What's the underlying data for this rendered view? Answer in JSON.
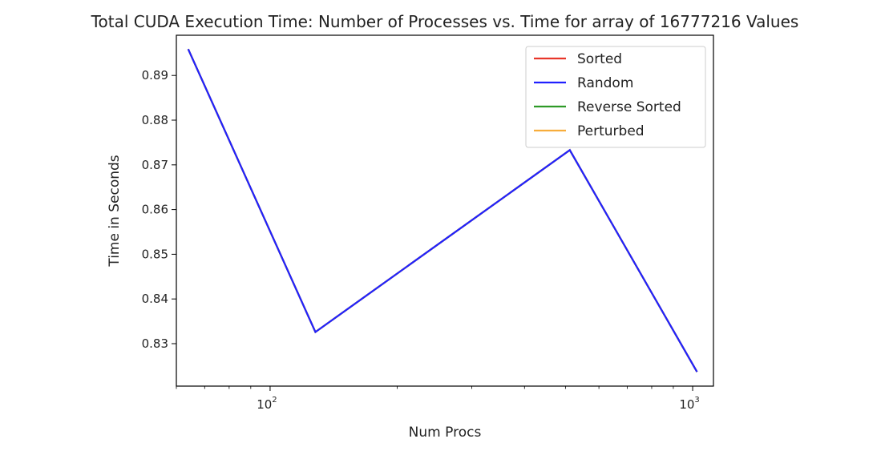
{
  "chart_data": {
    "type": "line",
    "title": "Total CUDA Execution Time: Number of Processes vs. Time for array of 16777216 Values",
    "xlabel": "Num Procs",
    "ylabel": "Time in Seconds",
    "xscale": "log",
    "xlim": [
      60,
      1120
    ],
    "ylim": [
      0.8205,
      0.899
    ],
    "x": [
      64,
      128,
      512,
      1024
    ],
    "xticks": [
      {
        "value": 100,
        "base": "10",
        "exp": "2"
      },
      {
        "value": 1000,
        "base": "10",
        "exp": "3"
      }
    ],
    "yticks": [
      0.83,
      0.84,
      0.85,
      0.86,
      0.87,
      0.88,
      0.89
    ],
    "series": [
      {
        "name": "Sorted",
        "color": "#e8362a",
        "values": [
          0.8959,
          0.8326,
          0.8733,
          0.8237
        ]
      },
      {
        "name": "Random",
        "color": "#2121ff",
        "values": [
          0.8959,
          0.8326,
          0.8733,
          0.8237
        ]
      },
      {
        "name": "Reverse Sorted",
        "color": "#2e9a27",
        "values": [
          0.8959,
          0.8326,
          0.8733,
          0.8237
        ]
      },
      {
        "name": "Perturbed",
        "color": "#f7ad3c",
        "values": [
          0.8959,
          0.8326,
          0.8733,
          0.8237
        ]
      }
    ],
    "draw_order": [
      "Sorted",
      "Reverse Sorted",
      "Perturbed",
      "Random"
    ],
    "legend": "top-right",
    "grid": false
  }
}
